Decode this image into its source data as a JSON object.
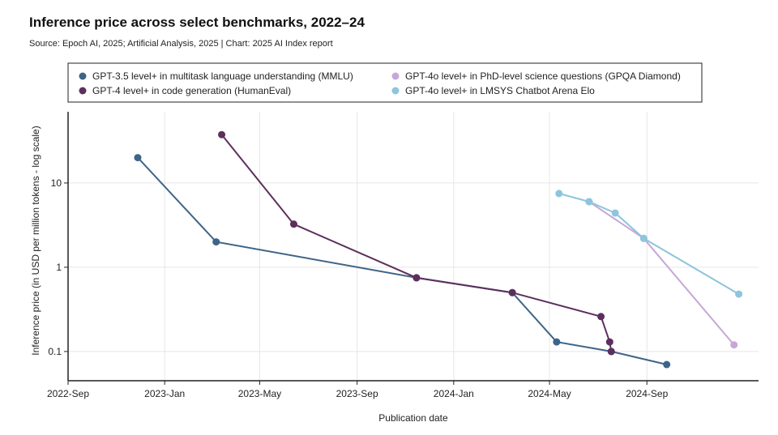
{
  "header": {
    "title": "Inference price across select benchmarks, 2022–24",
    "source": "Source: Epoch AI, 2025; Artificial Analysis, 2025 | Chart: 2025 AI Index report"
  },
  "chart_data": {
    "type": "line",
    "title": "Inference price across select benchmarks, 2022–24",
    "xlabel": "Publication date",
    "ylabel": "Inference price (in USD per million tokens - log scale)",
    "yscale": "log",
    "xlim": [
      "2022-09-01",
      "2025-01-20"
    ],
    "ylim": [
      0.045,
      70
    ],
    "grid": true,
    "legend_position": "top",
    "x_ticks": [
      {
        "date": "2022-09-01",
        "label": "2022-Sep"
      },
      {
        "date": "2023-01-01",
        "label": "2023-Jan"
      },
      {
        "date": "2023-05-01",
        "label": "2023-May"
      },
      {
        "date": "2023-09-01",
        "label": "2023-Sep"
      },
      {
        "date": "2024-01-01",
        "label": "2024-Jan"
      },
      {
        "date": "2024-05-01",
        "label": "2024-May"
      },
      {
        "date": "2024-09-01",
        "label": "2024-Sep"
      }
    ],
    "y_ticks": [
      {
        "value": 0.1,
        "label": "0.1"
      },
      {
        "value": 1,
        "label": "1"
      },
      {
        "value": 10,
        "label": "10"
      }
    ],
    "series": [
      {
        "name": "GPT-3.5 level+ in multitask language understanding (MMLU)",
        "color": "#3f6488",
        "points": [
          {
            "x": "2022-11-28",
            "y": 20
          },
          {
            "x": "2023-03-07",
            "y": 2
          },
          {
            "x": "2023-11-15",
            "y": 0.75
          },
          {
            "x": "2024-03-15",
            "y": 0.5
          },
          {
            "x": "2024-05-10",
            "y": 0.13
          },
          {
            "x": "2024-07-18",
            "y": 0.1
          },
          {
            "x": "2024-09-26",
            "y": 0.07
          }
        ]
      },
      {
        "name": "GPT-4 level+ in code generation (HumanEval)",
        "color": "#5c2f5c",
        "points": [
          {
            "x": "2023-03-14",
            "y": 37.5
          },
          {
            "x": "2023-06-13",
            "y": 3.25
          },
          {
            "x": "2023-11-15",
            "y": 0.75
          },
          {
            "x": "2024-03-15",
            "y": 0.5
          },
          {
            "x": "2024-07-05",
            "y": 0.26
          },
          {
            "x": "2024-07-16",
            "y": 0.13
          },
          {
            "x": "2024-07-18",
            "y": 0.1
          }
        ]
      },
      {
        "name": "GPT-4o level+ in PhD-level science questions (GPQA Diamond)",
        "color": "#c7a7d8",
        "points": [
          {
            "x": "2024-06-20",
            "y": 6
          },
          {
            "x": "2024-08-28",
            "y": 2.2
          },
          {
            "x": "2024-12-20",
            "y": 0.12
          }
        ]
      },
      {
        "name": "GPT-4o level+ in LMSYS Chatbot Arena Elo",
        "color": "#8ec5dc",
        "points": [
          {
            "x": "2024-05-13",
            "y": 7.5
          },
          {
            "x": "2024-06-20",
            "y": 6
          },
          {
            "x": "2024-07-23",
            "y": 4.4
          },
          {
            "x": "2024-08-28",
            "y": 2.2
          },
          {
            "x": "2024-12-26",
            "y": 0.48
          }
        ]
      }
    ]
  }
}
